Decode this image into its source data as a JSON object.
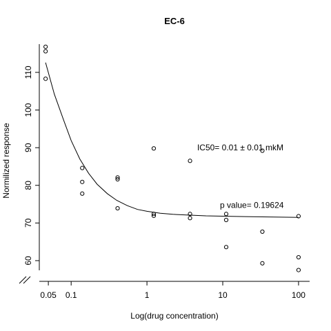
{
  "chart_data": {
    "type": "scatter",
    "title": "EC-6",
    "xlabel": "Log(drug concentration)",
    "ylabel": "Normilized response",
    "xscale": "log",
    "xlim": [
      0.038,
      140
    ],
    "ylim": [
      54.5,
      117.5
    ],
    "x_ticks": [
      {
        "value": 0.05,
        "label": "0.05"
      },
      {
        "value": 0.1,
        "label": "0.1"
      },
      {
        "value": 1,
        "label": "1"
      },
      {
        "value": 10,
        "label": "10"
      },
      {
        "value": 100,
        "label": "100"
      }
    ],
    "y_ticks": [
      {
        "value": 60,
        "label": "60"
      },
      {
        "value": 70,
        "label": "70"
      },
      {
        "value": 80,
        "label": "80"
      },
      {
        "value": 90,
        "label": "90"
      },
      {
        "value": 100,
        "label": "100"
      },
      {
        "value": 110,
        "label": "110"
      }
    ],
    "axis_break": true,
    "grid": false,
    "legend": "none",
    "points": [
      {
        "x": 0.046,
        "y": 116.8
      },
      {
        "x": 0.046,
        "y": 115.6
      },
      {
        "x": 0.046,
        "y": 108.3
      },
      {
        "x": 0.14,
        "y": 84.6
      },
      {
        "x": 0.14,
        "y": 80.9
      },
      {
        "x": 0.14,
        "y": 77.8
      },
      {
        "x": 0.41,
        "y": 82.1
      },
      {
        "x": 0.41,
        "y": 81.6
      },
      {
        "x": 0.41,
        "y": 73.9
      },
      {
        "x": 1.23,
        "y": 89.8
      },
      {
        "x": 1.23,
        "y": 72.4
      },
      {
        "x": 1.23,
        "y": 71.9
      },
      {
        "x": 3.7,
        "y": 86.5
      },
      {
        "x": 3.7,
        "y": 72.4
      },
      {
        "x": 3.7,
        "y": 71.3
      },
      {
        "x": 11.1,
        "y": 72.4
      },
      {
        "x": 11.1,
        "y": 70.8
      },
      {
        "x": 11.1,
        "y": 63.6
      },
      {
        "x": 33.3,
        "y": 89.2
      },
      {
        "x": 33.3,
        "y": 67.7
      },
      {
        "x": 33.3,
        "y": 59.3
      },
      {
        "x": 100,
        "y": 71.8
      },
      {
        "x": 100,
        "y": 60.9
      },
      {
        "x": 100,
        "y": 57.5
      }
    ],
    "fit_curve": [
      {
        "x": 0.046,
        "y": 112.6
      },
      {
        "x": 0.06,
        "y": 104.2
      },
      {
        "x": 0.08,
        "y": 97.2
      },
      {
        "x": 0.1,
        "y": 91.9
      },
      {
        "x": 0.13,
        "y": 87.0
      },
      {
        "x": 0.17,
        "y": 83.2
      },
      {
        "x": 0.22,
        "y": 80.3
      },
      {
        "x": 0.3,
        "y": 77.8
      },
      {
        "x": 0.4,
        "y": 76.0
      },
      {
        "x": 0.55,
        "y": 74.6
      },
      {
        "x": 0.75,
        "y": 73.6
      },
      {
        "x": 1.0,
        "y": 73.1
      },
      {
        "x": 1.5,
        "y": 72.6
      },
      {
        "x": 2.2,
        "y": 72.3
      },
      {
        "x": 3.5,
        "y": 72.1
      },
      {
        "x": 6,
        "y": 71.9
      },
      {
        "x": 10,
        "y": 71.8
      },
      {
        "x": 20,
        "y": 71.7
      },
      {
        "x": 40,
        "y": 71.6
      },
      {
        "x": 100,
        "y": 71.5
      }
    ],
    "annotations": [
      {
        "text": "IC50= 0.01 ± 0.01 mkM",
        "x": 4.6,
        "y": 90
      },
      {
        "text": "p value= 0.19624",
        "x": 9.2,
        "y": 74.7
      }
    ]
  }
}
